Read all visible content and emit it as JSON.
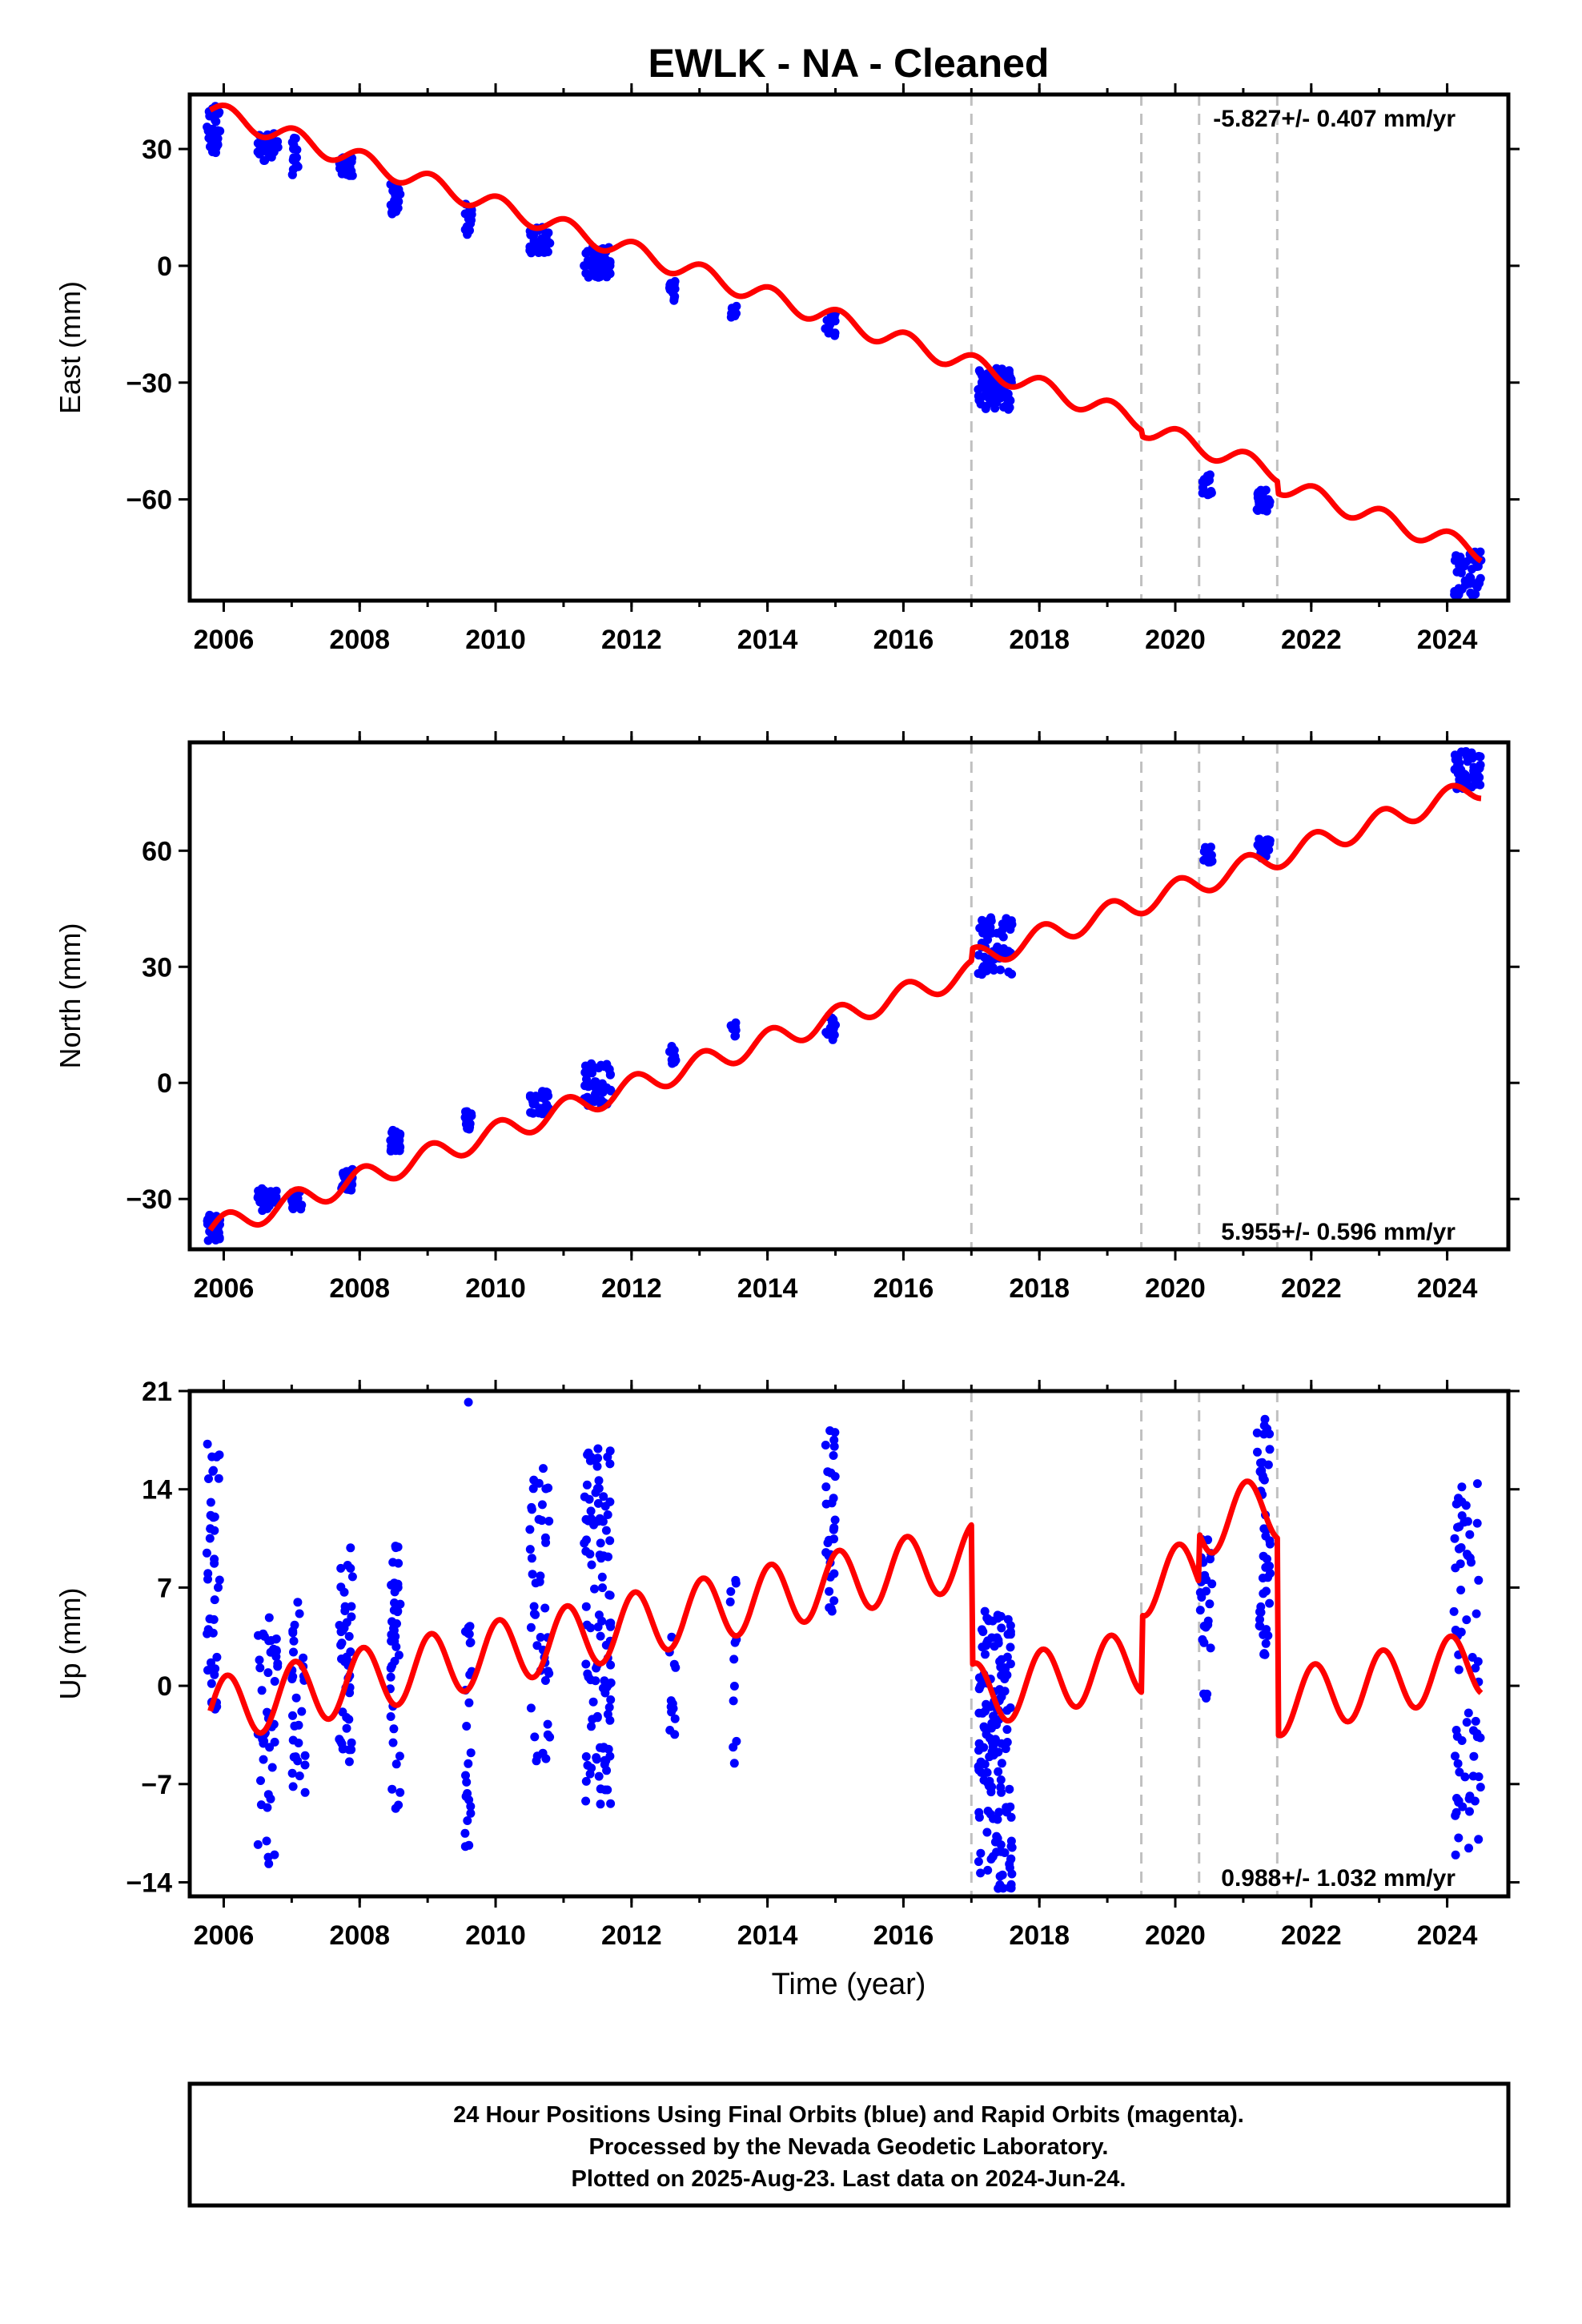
{
  "figure": {
    "title": "EWLK  - NA - Cleaned",
    "xlabel": "Time (year)"
  },
  "colors": {
    "points": "#0000ff",
    "model": "#ff0000",
    "events": "#c0c0c0",
    "frame": "#000000"
  },
  "footer": {
    "lines": [
      "24 Hour Positions Using Final Orbits (blue) and Rapid Orbits (magenta).",
      "Processed by the Nevada Geodetic Laboratory.",
      "Plotted on 2025-Aug-23. Last data on 2024-Jun-24."
    ]
  },
  "chart_data": [
    {
      "type": "scatter",
      "component": "east",
      "ylabel": "East (mm)",
      "rate_label": "-5.827+/- 0.407 mm/yr",
      "xlim": [
        2005.5,
        2024.9
      ],
      "ylim": [
        -86,
        44
      ],
      "yticks": [
        30,
        0,
        -30,
        -60
      ],
      "xticks": [
        2006,
        2008,
        2010,
        2012,
        2014,
        2016,
        2018,
        2020,
        2022,
        2024
      ],
      "events": [
        2017.0,
        2019.5,
        2020.35,
        2021.5
      ],
      "steps": [
        {
          "x": 2019.5,
          "dy": -1.5
        },
        {
          "x": 2021.5,
          "dy": -3
        }
      ],
      "model": {
        "intercept": 40,
        "x0": 2005.8,
        "rate": -5.827,
        "amp_annual": 2.5
      },
      "obs_clusters": [
        {
          "x": [
            2005.75,
            2005.95
          ],
          "y": [
            29,
            41
          ],
          "n": 40
        },
        {
          "x": [
            2006.5,
            2006.8
          ],
          "y": [
            27,
            34
          ],
          "n": 40
        },
        {
          "x": [
            2007.0,
            2007.1
          ],
          "y": [
            22,
            33
          ],
          "n": 14
        },
        {
          "x": [
            2007.7,
            2007.9
          ],
          "y": [
            23,
            28
          ],
          "n": 35
        },
        {
          "x": [
            2008.45,
            2008.6
          ],
          "y": [
            13,
            21
          ],
          "n": 22
        },
        {
          "x": [
            2009.55,
            2009.65
          ],
          "y": [
            8,
            16
          ],
          "n": 18
        },
        {
          "x": [
            2010.5,
            2010.8
          ],
          "y": [
            3,
            10
          ],
          "n": 35
        },
        {
          "x": [
            2011.3,
            2011.7
          ],
          "y": [
            -3,
            5
          ],
          "n": 60
        },
        {
          "x": [
            2012.55,
            2012.65
          ],
          "y": [
            -9,
            -4
          ],
          "n": 14
        },
        {
          "x": [
            2013.45,
            2013.55
          ],
          "y": [
            -14,
            -9
          ],
          "n": 10
        },
        {
          "x": [
            2014.85,
            2015.0
          ],
          "y": [
            -18,
            -12
          ],
          "n": 16
        },
        {
          "x": [
            2017.1,
            2017.6
          ],
          "y": [
            -37,
            -26
          ],
          "n": 70
        },
        {
          "x": [
            2020.4,
            2020.55
          ],
          "y": [
            -59,
            -53
          ],
          "n": 16
        },
        {
          "x": [
            2021.2,
            2021.4
          ],
          "y": [
            -63,
            -57
          ],
          "n": 22
        },
        {
          "x": [
            2024.1,
            2024.5
          ],
          "y": [
            -85,
            -73
          ],
          "n": 45
        }
      ]
    },
    {
      "type": "scatter",
      "component": "north",
      "ylabel": "North (mm)",
      "rate_label": "5.955+/- 0.596 mm/yr",
      "xlim": [
        2005.5,
        2024.9
      ],
      "ylim": [
        -43,
        88
      ],
      "yticks": [
        60,
        30,
        0,
        -30
      ],
      "xticks": [
        2006,
        2008,
        2010,
        2012,
        2014,
        2016,
        2018,
        2020,
        2022,
        2024
      ],
      "events": [
        2017.0,
        2019.5,
        2020.35,
        2021.5
      ],
      "steps": [
        {
          "x": 2017.0,
          "dy": 3
        }
      ],
      "model": {
        "intercept": -38,
        "x0": 2005.8,
        "rate": 5.955,
        "amp_annual": 3.0
      },
      "obs_clusters": [
        {
          "x": [
            2005.75,
            2005.95
          ],
          "y": [
            -41,
            -34
          ],
          "n": 30
        },
        {
          "x": [
            2006.5,
            2006.8
          ],
          "y": [
            -33,
            -27
          ],
          "n": 30
        },
        {
          "x": [
            2007.0,
            2007.2
          ],
          "y": [
            -33,
            -28
          ],
          "n": 14
        },
        {
          "x": [
            2007.7,
            2007.9
          ],
          "y": [
            -28,
            -22
          ],
          "n": 25
        },
        {
          "x": [
            2008.45,
            2008.6
          ],
          "y": [
            -18,
            -12
          ],
          "n": 22
        },
        {
          "x": [
            2009.55,
            2009.65
          ],
          "y": [
            -12,
            -7
          ],
          "n": 16
        },
        {
          "x": [
            2010.5,
            2010.8
          ],
          "y": [
            -8,
            -2
          ],
          "n": 30
        },
        {
          "x": [
            2011.3,
            2011.7
          ],
          "y": [
            -6,
            5
          ],
          "n": 50
        },
        {
          "x": [
            2012.55,
            2012.65
          ],
          "y": [
            5,
            10
          ],
          "n": 12
        },
        {
          "x": [
            2013.45,
            2013.55
          ],
          "y": [
            12,
            16
          ],
          "n": 10
        },
        {
          "x": [
            2014.85,
            2015.0
          ],
          "y": [
            11,
            18
          ],
          "n": 14
        },
        {
          "x": [
            2017.1,
            2017.6
          ],
          "y": [
            28,
            44
          ],
          "n": 70
        },
        {
          "x": [
            2020.4,
            2020.55
          ],
          "y": [
            57,
            61
          ],
          "n": 14
        },
        {
          "x": [
            2021.2,
            2021.4
          ],
          "y": [
            58,
            63
          ],
          "n": 20
        },
        {
          "x": [
            2024.1,
            2024.5
          ],
          "y": [
            76,
            86
          ],
          "n": 45
        }
      ]
    },
    {
      "type": "scatter",
      "component": "up",
      "ylabel": "Up (mm)",
      "rate_label": "0.988+/- 1.032 mm/yr",
      "xlim": [
        2005.5,
        2024.9
      ],
      "ylim": [
        -15,
        21
      ],
      "yticks": [
        21,
        14,
        7,
        0,
        -7,
        -14
      ],
      "xticks": [
        2006,
        2008,
        2010,
        2012,
        2014,
        2016,
        2018,
        2020,
        2022,
        2024
      ],
      "events": [
        2017.0,
        2019.5,
        2020.35,
        2021.5
      ],
      "steps": [
        {
          "x": 2017.0,
          "dy": -10
        },
        {
          "x": 2019.5,
          "dy": 5.5
        },
        {
          "x": 2020.35,
          "dy": 3.5
        },
        {
          "x": 2021.5,
          "dy": -14
        }
      ],
      "model": {
        "intercept": -1.8,
        "x0": 2005.8,
        "rate": 0.988,
        "amp_annual": 2.3
      },
      "obs_clusters": [
        {
          "x": [
            2005.75,
            2005.95
          ],
          "y": [
            -2,
            17.5
          ],
          "n": 40
        },
        {
          "x": [
            2006.5,
            2006.8
          ],
          "y": [
            -13,
            6
          ],
          "n": 45
        },
        {
          "x": [
            2007.0,
            2007.2
          ],
          "y": [
            -9,
            6
          ],
          "n": 30
        },
        {
          "x": [
            2007.7,
            2007.9
          ],
          "y": [
            -6,
            10.5
          ],
          "n": 45
        },
        {
          "x": [
            2008.45,
            2008.6
          ],
          "y": [
            -9,
            10
          ],
          "n": 40
        },
        {
          "x": [
            2009.55,
            2009.65
          ],
          "y": [
            -11.5,
            4.5
          ],
          "n": 25
        },
        {
          "x": [
            2010.5,
            2010.8
          ],
          "y": [
            -6,
            15.5
          ],
          "n": 45
        },
        {
          "x": [
            2011.3,
            2011.7
          ],
          "y": [
            -8.5,
            17
          ],
          "n": 110
        },
        {
          "x": [
            2012.55,
            2012.65
          ],
          "y": [
            -4,
            5.5
          ],
          "n": 12
        },
        {
          "x": [
            2013.45,
            2013.55
          ],
          "y": [
            -7,
            9
          ],
          "n": 12
        },
        {
          "x": [
            2014.85,
            2015.0
          ],
          "y": [
            4,
            18.5
          ],
          "n": 30
        },
        {
          "x": [
            2017.1,
            2017.6
          ],
          "y": [
            -14.5,
            5.5
          ],
          "n": 150
        },
        {
          "x": [
            2020.35,
            2020.55
          ],
          "y": [
            -1.5,
            10.5
          ],
          "n": 25
        },
        {
          "x": [
            2021.2,
            2021.4
          ],
          "y": [
            2,
            19.5
          ],
          "n": 50
        },
        {
          "x": [
            2024.1,
            2024.5
          ],
          "y": [
            -12.5,
            14.5
          ],
          "n": 70
        }
      ],
      "outliers": [
        {
          "x": 2009.6,
          "y": 20.2
        }
      ]
    }
  ]
}
